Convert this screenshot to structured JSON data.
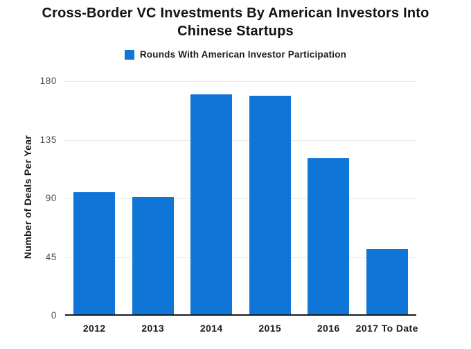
{
  "header": {
    "title": "Cross-Border VC Investments By American Investors Into Chinese Startups"
  },
  "legend": {
    "swatch_icon": "blue-square-swatch",
    "label": "Rounds With American Investor Participation"
  },
  "chart_data": {
    "type": "bar",
    "title": "Cross-Border VC Investments By American Investors Into Chinese Startups",
    "categories": [
      "2012",
      "2013",
      "2014",
      "2015",
      "2016",
      "2017 To Date"
    ],
    "series": [
      {
        "name": "Rounds With American Investor Participation",
        "values": [
          94,
          90,
          169,
          168,
          120,
          50
        ],
        "color": "#0f76d7"
      }
    ],
    "xlabel": "",
    "ylabel": "Number of Deals Per Year",
    "ylim": [
      0,
      180
    ],
    "yticks": [
      0,
      45,
      90,
      135,
      180
    ],
    "grid": "horizontal",
    "legend_position": "top-center",
    "colors": {
      "bar": "#0f76d7",
      "gridline": "#e8e8e8",
      "axis_line": "#1a1a1a",
      "tick_label": "#4d4d4d",
      "category_label": "#1c1c1c",
      "title": "#121212"
    }
  }
}
